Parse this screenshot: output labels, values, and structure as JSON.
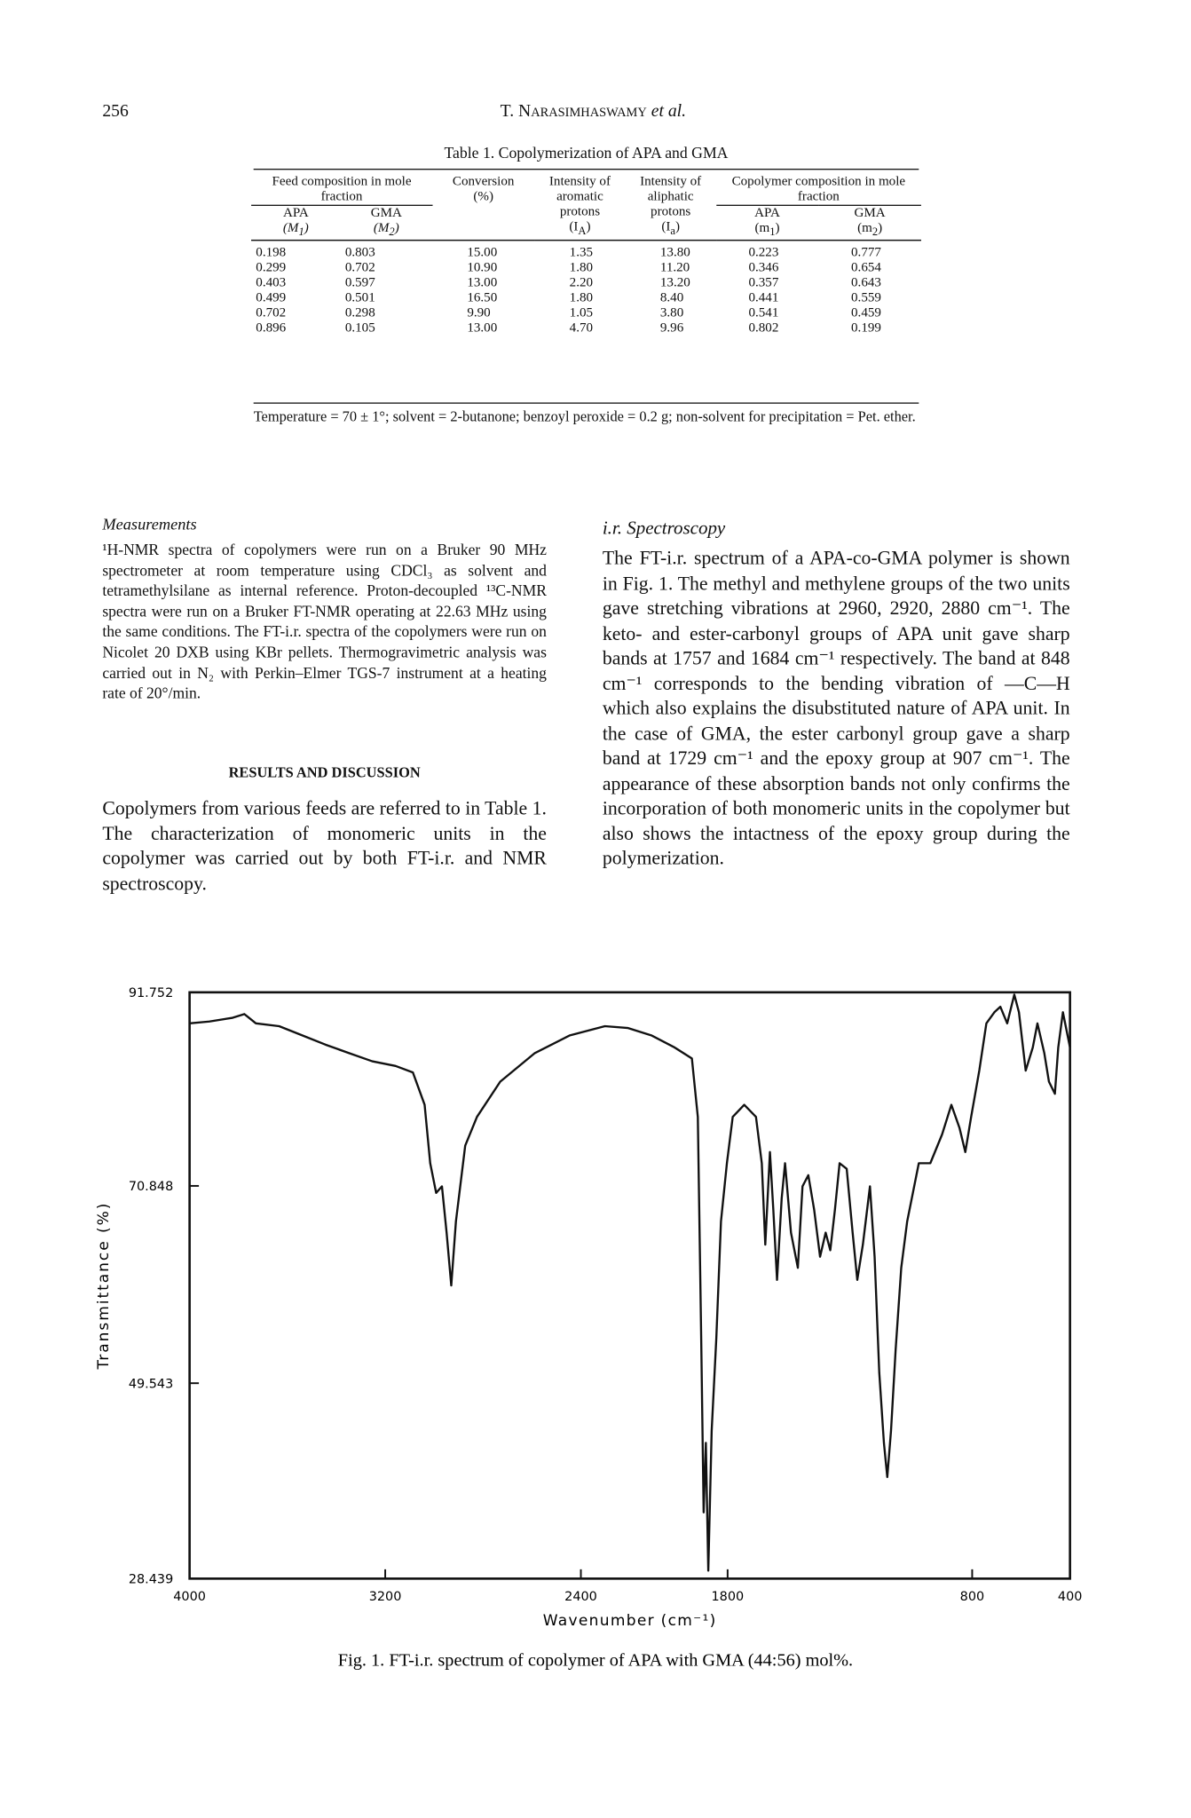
{
  "header": {
    "page_number": "256",
    "author": "T. Narasimhaswamy",
    "suffix": "et al."
  },
  "table": {
    "caption": "Table 1. Copolymerization of APA and GMA",
    "groups": [
      "Feed composition in mole fraction",
      "Copolymer composition in mole fraction"
    ],
    "columns": [
      {
        "name": "APA",
        "symbol": {
          "pre": "(M",
          "sub": "1",
          "post": ")"
        }
      },
      {
        "name": "GMA",
        "symbol": {
          "pre": "(M",
          "sub": "2",
          "post": ")"
        }
      },
      {
        "name": "Conversion",
        "symbol": {
          "pre": "(%)"
        }
      },
      {
        "name": "Intensity of aromatic protons",
        "symbol": {
          "pre": "(I",
          "sub": "A",
          "post": ")"
        }
      },
      {
        "name": "Intensity of aliphatic protons",
        "symbol": {
          "pre": "(I",
          "sub": "a",
          "post": ")"
        }
      },
      {
        "name": "APA",
        "symbol": {
          "pre": "(m",
          "sub": "1",
          "post": ")"
        }
      },
      {
        "name": "GMA",
        "symbol": {
          "pre": "(m",
          "sub": "2",
          "post": ")"
        }
      }
    ],
    "rows": [
      [
        "0.198",
        "0.803",
        "15.00",
        "1.35",
        "13.80",
        "0.223",
        "0.777"
      ],
      [
        "0.299",
        "0.702",
        "10.90",
        "1.80",
        "11.20",
        "0.346",
        "0.654"
      ],
      [
        "0.403",
        "0.597",
        "13.00",
        "2.20",
        "13.20",
        "0.357",
        "0.643"
      ],
      [
        "0.499",
        "0.501",
        "16.50",
        "1.80",
        "8.40",
        "0.441",
        "0.559"
      ],
      [
        "0.702",
        "0.298",
        "9.90",
        "1.05",
        "3.80",
        "0.541",
        "0.459"
      ],
      [
        "0.896",
        "0.105",
        "13.00",
        "4.70",
        "9.96",
        "0.802",
        "0.199"
      ]
    ],
    "footnote": "Temperature = 70 ± 1°; solvent = 2-butanone; benzoyl peroxide = 0.2 g; non-solvent for precipitation = Pet. ether."
  },
  "measurements": {
    "heading": "Measurements",
    "text": "¹H-NMR spectra of copolymers were run on a Bruker 90 MHz spectrometer at room temperature using CDCl₃ as solvent and tetramethylsilane as internal reference. Proton-decoupled ¹³C-NMR spectra were run on a Bruker FT-NMR operating at 22.63 MHz using the same conditions. The FT-i.r. spectra of the copolymers were run on Nicolet 20 DXB using KBr pellets. Thermogravimetric analysis was carried out in N₂ with Perkin–Elmer TGS-7 instrument at a heating rate of 20°/min."
  },
  "results": {
    "heading": "RESULTS AND DISCUSSION",
    "text": "Copolymers from various feeds are referred to in Table 1. The characterization of monomeric units in the copolymer was carried out by both FT-i.r. and NMR spectroscopy."
  },
  "ir": {
    "heading": "i.r. Spectroscopy",
    "text": "The FT-i.r. spectrum of a APA-co-GMA polymer is shown in Fig. 1. The methyl and methylene groups of the two units gave stretching vibrations at 2960, 2920, 2880 cm⁻¹. The keto- and ester-carbonyl groups of APA unit gave sharp bands at 1757 and 1684 cm⁻¹ respectively. The band at 848 cm⁻¹ corresponds to the bending vibration of —C—H which also explains the disubstituted nature of APA unit. In the case of GMA, the ester carbonyl group gave a sharp band at 1729 cm⁻¹ and the epoxy group at 907 cm⁻¹. The appearance of these absorption bands not only confirms the incorporation of both monomeric units in the copolymer but also shows the intactness of the epoxy group during the polymerization."
  },
  "chart_data": {
    "type": "line",
    "caption": "Fig. 1. FT-i.r. spectrum of copolymer of APA with GMA (44:56) mol%.",
    "xlabel": "Wavenumber (cm⁻¹)",
    "ylabel": "Transmittance (%)",
    "color": "#111111",
    "xlim": [
      4000,
      400
    ],
    "ylim": [
      28.439,
      91.752
    ],
    "xticks": [
      4000,
      3200,
      2400,
      1800,
      800,
      400
    ],
    "yticks": [
      28.439,
      49.543,
      70.848,
      91.752
    ],
    "x": [
      4000,
      3919,
      3824,
      3776,
      3729,
      3634,
      3539,
      3444,
      3349,
      3253,
      3158,
      3087,
      3039,
      3016,
      2992,
      2968,
      2949,
      2930,
      2911,
      2873,
      2825,
      2730,
      2588,
      2445,
      2302,
      2207,
      2112,
      2017,
      1946,
      1922,
      1908,
      1898,
      1889,
      1879,
      1865,
      1846,
      1827,
      1803,
      1779,
      1732,
      1684,
      1660,
      1646,
      1627,
      1613,
      1598,
      1579,
      1565,
      1541,
      1513,
      1494,
      1470,
      1446,
      1422,
      1399,
      1380,
      1361,
      1342,
      1313,
      1289,
      1270,
      1247,
      1218,
      1199,
      1180,
      1161,
      1147,
      1132,
      1113,
      1090,
      1066,
      1018,
      971,
      923,
      885,
      852,
      828,
      804,
      771,
      742,
      709,
      685,
      657,
      628,
      609,
      581,
      552,
      533,
      505,
      486,
      462,
      448,
      429,
      410,
      400
    ],
    "values": [
      88.4,
      88.6,
      89.0,
      89.4,
      88.4,
      88.1,
      87.1,
      86.1,
      85.2,
      84.3,
      83.8,
      83.1,
      79.6,
      73.3,
      70.1,
      70.8,
      65.8,
      60.1,
      67.0,
      75.2,
      78.3,
      82.1,
      85.2,
      87.1,
      88.1,
      87.9,
      87.1,
      85.8,
      84.6,
      78.3,
      54.4,
      35.6,
      43.1,
      29.3,
      44.4,
      54.4,
      67.0,
      73.3,
      78.3,
      79.6,
      78.3,
      73.3,
      64.5,
      74.5,
      68.3,
      60.7,
      69.5,
      73.3,
      65.8,
      62.0,
      70.8,
      72.0,
      68.3,
      63.2,
      65.8,
      63.9,
      68.3,
      73.3,
      72.7,
      65.8,
      60.7,
      64.5,
      70.8,
      63.2,
      50.7,
      43.1,
      39.4,
      44.4,
      53.2,
      62.0,
      67.0,
      73.3,
      73.3,
      76.4,
      79.6,
      77.1,
      74.5,
      78.3,
      83.3,
      88.4,
      89.6,
      90.2,
      88.4,
      91.5,
      89.6,
      83.3,
      85.8,
      88.4,
      85.2,
      82.1,
      80.8,
      85.8,
      89.6,
      87.1,
      85.8
    ]
  }
}
